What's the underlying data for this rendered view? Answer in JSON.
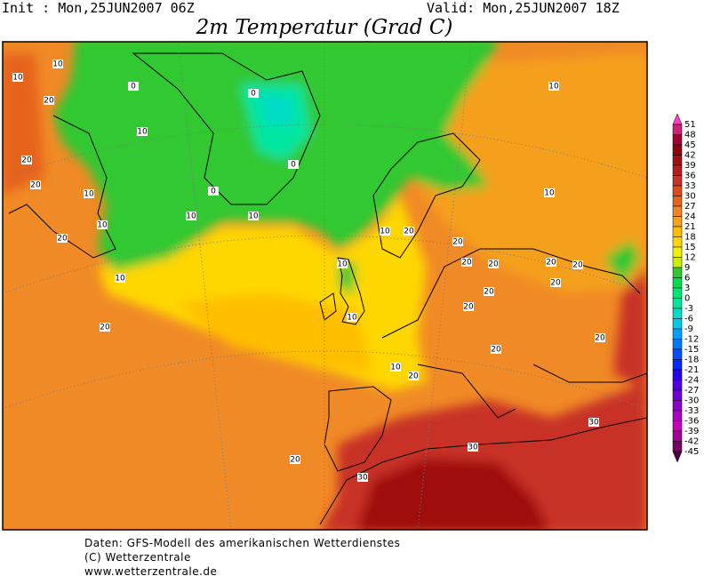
{
  "header": {
    "init": "Init : Mon,25JUN2007 06Z",
    "valid": "Valid: Mon,25JUN2007 18Z",
    "title": "2m Temperatur (Grad C)"
  },
  "colorbar": {
    "labels": [
      51,
      48,
      45,
      42,
      39,
      36,
      33,
      30,
      27,
      24,
      21,
      18,
      15,
      12,
      9,
      6,
      3,
      0,
      -3,
      -6,
      -9,
      -12,
      -15,
      -18,
      -21,
      -24,
      -27,
      -30,
      -33,
      -36,
      -39,
      -42,
      -45
    ],
    "colors": [
      "#ff40c0",
      "#d0207a",
      "#a00030",
      "#8c0010",
      "#a01010",
      "#b41e1e",
      "#c83228",
      "#dc4b1e",
      "#e6641e",
      "#f08228",
      "#f5a01e",
      "#ffbe00",
      "#ffd700",
      "#f0f000",
      "#c8f000",
      "#32c832",
      "#00dc50",
      "#00e678",
      "#00e6a0",
      "#00dcc8",
      "#00c8e6",
      "#00a0ff",
      "#0078ff",
      "#0050ff",
      "#0028ff",
      "#2800f0",
      "#5000e6",
      "#6e00dc",
      "#8c00d2",
      "#aa00c8",
      "#c800be",
      "#a00096",
      "#780064",
      "#50003c"
    ]
  },
  "map": {
    "contour_labels": [
      "10",
      "20",
      "10",
      "20",
      "0",
      "10",
      "10",
      "0",
      "0",
      "0",
      "10",
      "20",
      "20",
      "10",
      "10",
      "10",
      "10",
      "20",
      "10",
      "20",
      "20",
      "20",
      "20",
      "20",
      "20",
      "20",
      "10",
      "20",
      "20",
      "30",
      "30",
      "30",
      "20",
      "10",
      "20",
      "20",
      "20",
      "10",
      "10"
    ]
  },
  "footer": {
    "line1": "Daten: GFS-Modell des amerikanischen Wetterdienstes",
    "line2": "(C) Wetterzentrale",
    "line3": "www.wetterzentrale.de"
  }
}
